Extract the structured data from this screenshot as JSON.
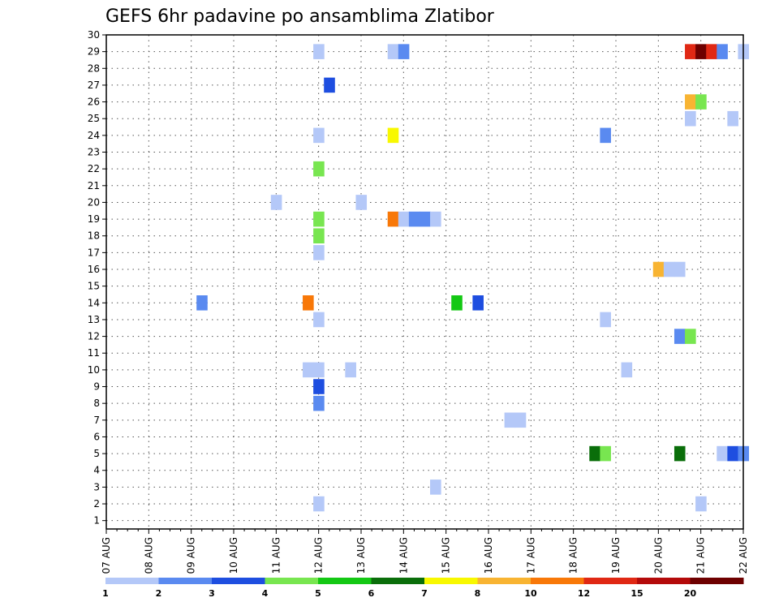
{
  "chart_data": {
    "type": "heatmap",
    "title": "GEFS 6hr padavine po ansamblima Zlatibor",
    "xlabel": "",
    "ylabel": "",
    "x_tick_labels": [
      "07 AUG",
      "08 AUG",
      "09 AUG",
      "10 AUG",
      "11 AUG",
      "12 AUG",
      "13 AUG",
      "14 AUG",
      "15 AUG",
      "16 AUG",
      "17 AUG",
      "18 AUG",
      "19 AUG",
      "20 AUG",
      "21 AUG",
      "22 AUG"
    ],
    "y_tick_labels": [
      "1",
      "2",
      "3",
      "4",
      "5",
      "6",
      "7",
      "8",
      "9",
      "10",
      "11",
      "12",
      "13",
      "14",
      "15",
      "16",
      "17",
      "18",
      "19",
      "20",
      "21",
      "22",
      "23",
      "24",
      "25",
      "26",
      "27",
      "28",
      "29",
      "30"
    ],
    "xlim": [
      0,
      15
    ],
    "ylim": [
      0.5,
      30
    ],
    "step_hours": 6,
    "grid": true,
    "legend_placement": "bottom",
    "legend": {
      "colors": [
        "#b4c8f8",
        "#5a8af0",
        "#1e4ee0",
        "#78e650",
        "#14c814",
        "#0a6e0a",
        "#f8f800",
        "#f8b432",
        "#f87808",
        "#e02814",
        "#b40a0a",
        "#6e0000"
      ],
      "labels": [
        "1",
        "2",
        "3",
        "4",
        "5",
        "6",
        "7",
        "8",
        "10",
        "12",
        "15",
        "20"
      ]
    },
    "cells": [
      {
        "t": 20,
        "y": 29,
        "c": 0
      },
      {
        "t": 27,
        "y": 29,
        "c": 0
      },
      {
        "t": 28,
        "y": 29,
        "c": 1
      },
      {
        "t": 55,
        "y": 29,
        "c": 9
      },
      {
        "t": 56,
        "y": 29,
        "c": 11
      },
      {
        "t": 57,
        "y": 29,
        "c": 9
      },
      {
        "t": 58,
        "y": 29,
        "c": 1
      },
      {
        "t": 60,
        "y": 29,
        "c": 0
      },
      {
        "t": 21,
        "y": 27,
        "c": 2
      },
      {
        "t": 55,
        "y": 26,
        "c": 7
      },
      {
        "t": 56,
        "y": 26,
        "c": 3
      },
      {
        "t": 55,
        "y": 25,
        "c": 0
      },
      {
        "t": 59,
        "y": 25,
        "c": 0
      },
      {
        "t": 20,
        "y": 24,
        "c": 0
      },
      {
        "t": 27,
        "y": 24,
        "c": 6
      },
      {
        "t": 47,
        "y": 24,
        "c": 1
      },
      {
        "t": 20,
        "y": 22,
        "c": 3
      },
      {
        "t": 16,
        "y": 20,
        "c": 0
      },
      {
        "t": 24,
        "y": 20,
        "c": 0
      },
      {
        "t": 20,
        "y": 19,
        "c": 3
      },
      {
        "t": 27,
        "y": 19,
        "c": 8
      },
      {
        "t": 28,
        "y": 19,
        "c": 0
      },
      {
        "t": 29,
        "y": 19,
        "c": 1
      },
      {
        "t": 30,
        "y": 19,
        "c": 1
      },
      {
        "t": 31,
        "y": 19,
        "c": 0
      },
      {
        "t": 20,
        "y": 18,
        "c": 3
      },
      {
        "t": 20,
        "y": 17,
        "c": 0
      },
      {
        "t": 52,
        "y": 16,
        "c": 7
      },
      {
        "t": 53,
        "y": 16,
        "c": 0
      },
      {
        "t": 54,
        "y": 16,
        "c": 0
      },
      {
        "t": 9,
        "y": 14,
        "c": 1
      },
      {
        "t": 19,
        "y": 14,
        "c": 8
      },
      {
        "t": 33,
        "y": 14,
        "c": 4
      },
      {
        "t": 35,
        "y": 14,
        "c": 2
      },
      {
        "t": 20,
        "y": 13,
        "c": 0
      },
      {
        "t": 47,
        "y": 13,
        "c": 0
      },
      {
        "t": 54,
        "y": 12,
        "c": 1
      },
      {
        "t": 55,
        "y": 12,
        "c": 3
      },
      {
        "t": 19,
        "y": 10,
        "c": 0
      },
      {
        "t": 20,
        "y": 10,
        "c": 0
      },
      {
        "t": 23,
        "y": 10,
        "c": 0
      },
      {
        "t": 49,
        "y": 10,
        "c": 0
      },
      {
        "t": 20,
        "y": 9,
        "c": 2
      },
      {
        "t": 20,
        "y": 8,
        "c": 1
      },
      {
        "t": 38,
        "y": 7,
        "c": 0
      },
      {
        "t": 39,
        "y": 7,
        "c": 0
      },
      {
        "t": 46,
        "y": 5,
        "c": 5
      },
      {
        "t": 47,
        "y": 5,
        "c": 3
      },
      {
        "t": 54,
        "y": 5,
        "c": 5
      },
      {
        "t": 58,
        "y": 5,
        "c": 0
      },
      {
        "t": 59,
        "y": 5,
        "c": 2
      },
      {
        "t": 60,
        "y": 5,
        "c": 1
      },
      {
        "t": 31,
        "y": 3,
        "c": 0
      },
      {
        "t": 20,
        "y": 2,
        "c": 0
      },
      {
        "t": 56,
        "y": 2,
        "c": 0
      }
    ]
  }
}
